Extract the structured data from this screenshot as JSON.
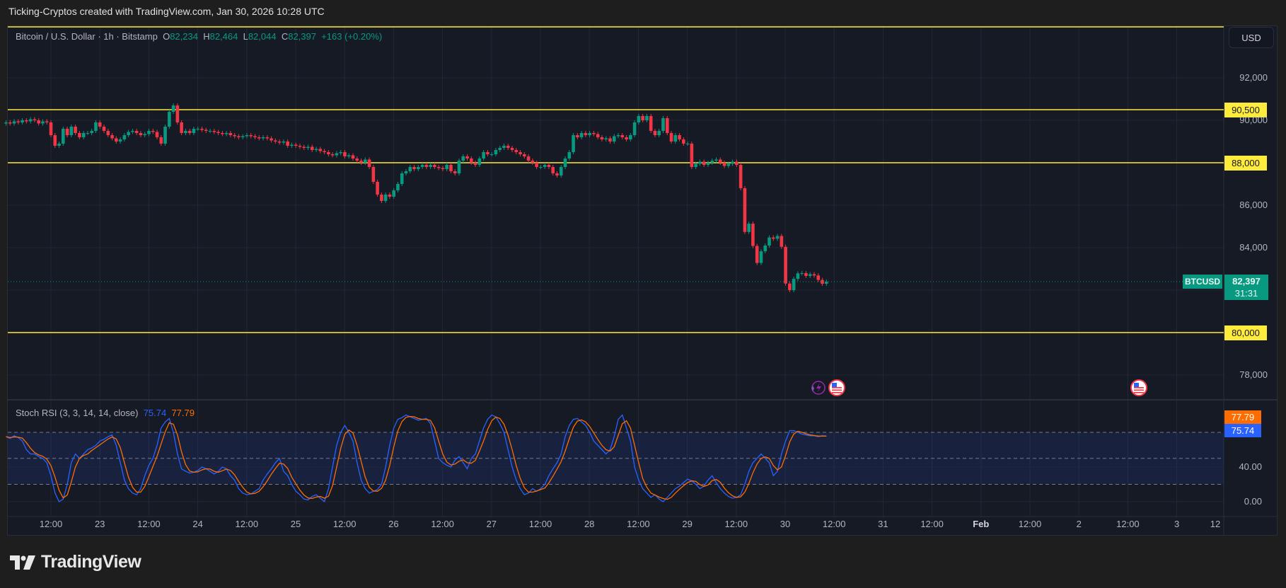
{
  "caption": "Ticking-Cryptos created with TradingView.com, Jan 30, 2026 10:28 UTC",
  "legend": {
    "symbol": "Bitcoin / U.S. Dollar · 1h · Bitstamp",
    "o_label": "O",
    "o": "82,234",
    "h_label": "H",
    "h": "82,464",
    "l_label": "L",
    "l": "82,044",
    "c_label": "C",
    "c": "82,397",
    "change": "+163 (+0.20%)"
  },
  "currency_button": "USD",
  "price_axis": [
    "92,000",
    "90,000",
    "86,000",
    "84,000",
    "78,000"
  ],
  "price_axis_values": [
    92000,
    90000,
    86000,
    84000,
    78000
  ],
  "horizontal_lines": [
    {
      "label": "90,500",
      "value": 90500
    },
    {
      "label": "88,000",
      "value": 88000
    },
    {
      "label": "80,000",
      "value": 80000
    }
  ],
  "last_price": {
    "symbol": "BTCUSD",
    "price": "82,397",
    "countdown": "31:31"
  },
  "colors": {
    "up": "#089981",
    "down": "#f23645",
    "hline": "#ffeb3b",
    "k": "#2962ff",
    "d": "#ff6d00"
  },
  "stoch": {
    "title": "Stoch RSI (3, 3, 14, 14, close)",
    "k_value": "75.74",
    "d_value": "77.79",
    "axis": [
      "40.00",
      "0.00"
    ],
    "upper_band": 80,
    "lower_band": 20,
    "middle": 50
  },
  "time_axis": [
    "12:00",
    "23",
    "12:00",
    "24",
    "12:00",
    "25",
    "12:00",
    "26",
    "12:00",
    "27",
    "12:00",
    "28",
    "12:00",
    "29",
    "12:00",
    "30",
    "12:00",
    "31",
    "12:00",
    "Feb",
    "12:00",
    "2",
    "12:00",
    "3",
    "12"
  ],
  "events": [
    {
      "icon": "lightning-icon",
      "when": "Jan 30"
    },
    {
      "icon": "us-flag-icon",
      "when": "Jan 30"
    },
    {
      "icon": "us-flag-icon",
      "when": "Feb 2"
    }
  ],
  "logo": "TradingView",
  "chart_data": {
    "type": "candlestick",
    "interval": "1h",
    "start": "2026-01-22 01:00",
    "first_open": 89850,
    "close": [
      89900,
      89850,
      89950,
      89900,
      90000,
      89950,
      90050,
      90000,
      89850,
      89950,
      89900,
      89300,
      88800,
      88900,
      89600,
      89300,
      89700,
      89400,
      89200,
      89400,
      89400,
      89500,
      89900,
      89700,
      89500,
      89300,
      89150,
      89000,
      89100,
      89300,
      89450,
      89500,
      89400,
      89300,
      89350,
      89500,
      89450,
      89200,
      88900,
      89700,
      90400,
      90700,
      89900,
      89400,
      89500,
      89400,
      89600,
      89600,
      89550,
      89500,
      89500,
      89450,
      89400,
      89350,
      89400,
      89300,
      89250,
      89200,
      89250,
      89300,
      89250,
      89200,
      89150,
      89200,
      89150,
      89050,
      89000,
      88950,
      89000,
      88800,
      88850,
      88800,
      88750,
      88700,
      88750,
      88600,
      88650,
      88550,
      88500,
      88400,
      88350,
      88450,
      88500,
      88300,
      88350,
      88200,
      88100,
      88000,
      88150,
      87800,
      87100,
      86500,
      86200,
      86500,
      86400,
      86700,
      87000,
      87500,
      87600,
      87800,
      87700,
      87800,
      87900,
      87800,
      87900,
      87800,
      87750,
      87700,
      87900,
      87600,
      87500,
      88100,
      88300,
      88200,
      88000,
      87900,
      88200,
      88500,
      88400,
      88400,
      88600,
      88700,
      88800,
      88700,
      88600,
      88500,
      88400,
      88300,
      88100,
      88000,
      87800,
      87800,
      87900,
      87800,
      87500,
      87400,
      87800,
      88200,
      88500,
      89300,
      89200,
      89400,
      89300,
      89400,
      89350,
      89200,
      89100,
      89150,
      89000,
      89250,
      89300,
      89200,
      89100,
      89300,
      89900,
      90200,
      90000,
      90200,
      89500,
      89300,
      89500,
      90100,
      89400,
      89000,
      89300,
      89100,
      88900,
      88900,
      87800,
      87950,
      88050,
      87900,
      88000,
      88100,
      88150,
      88000,
      87850,
      87950,
      88050,
      87900,
      86800,
      84740,
      85130,
      84080,
      83280,
      83830,
      84100,
      84480,
      84420,
      84550,
      84040,
      82310,
      82000,
      82530,
      82790,
      82800,
      82670,
      82750,
      82690,
      82480,
      82300,
      82397
    ],
    "stoch_k": [
      75,
      73,
      76,
      74,
      70,
      60,
      55,
      55,
      52,
      50,
      45,
      30,
      10,
      0,
      3,
      20,
      45,
      55,
      50,
      55,
      60,
      62,
      65,
      70,
      72,
      75,
      77,
      65,
      45,
      25,
      15,
      10,
      8,
      15,
      30,
      42,
      50,
      65,
      85,
      92,
      96,
      80,
      55,
      38,
      35,
      33,
      34,
      36,
      40,
      38,
      35,
      32,
      35,
      40,
      38,
      30,
      25,
      15,
      10,
      8,
      9,
      12,
      15,
      25,
      32,
      38,
      45,
      50,
      35,
      30,
      20,
      12,
      8,
      3,
      2,
      6,
      8,
      4,
      0,
      15,
      40,
      65,
      80,
      88,
      80,
      70,
      45,
      25,
      15,
      10,
      12,
      14,
      20,
      40,
      65,
      85,
      95,
      97,
      100,
      98,
      96,
      94,
      95,
      96,
      90,
      70,
      50,
      45,
      42,
      40,
      48,
      52,
      45,
      38,
      50,
      55,
      70,
      85,
      95,
      100,
      98,
      90,
      80,
      60,
      40,
      25,
      15,
      8,
      10,
      15,
      12,
      15,
      20,
      30,
      38,
      45,
      55,
      75,
      88,
      95,
      96,
      92,
      88,
      80,
      70,
      65,
      60,
      55,
      60,
      75,
      95,
      100,
      85,
      70,
      40,
      25,
      15,
      10,
      5,
      8,
      3,
      0,
      5,
      10,
      15,
      18,
      22,
      26,
      24,
      20,
      15,
      18,
      25,
      30,
      22,
      15,
      10,
      6,
      4,
      5,
      8,
      20,
      35,
      45,
      50,
      55,
      50,
      45,
      30,
      35,
      55,
      70,
      82,
      82,
      80,
      78,
      77,
      76,
      76,
      75,
      76,
      75.74
    ]
  }
}
